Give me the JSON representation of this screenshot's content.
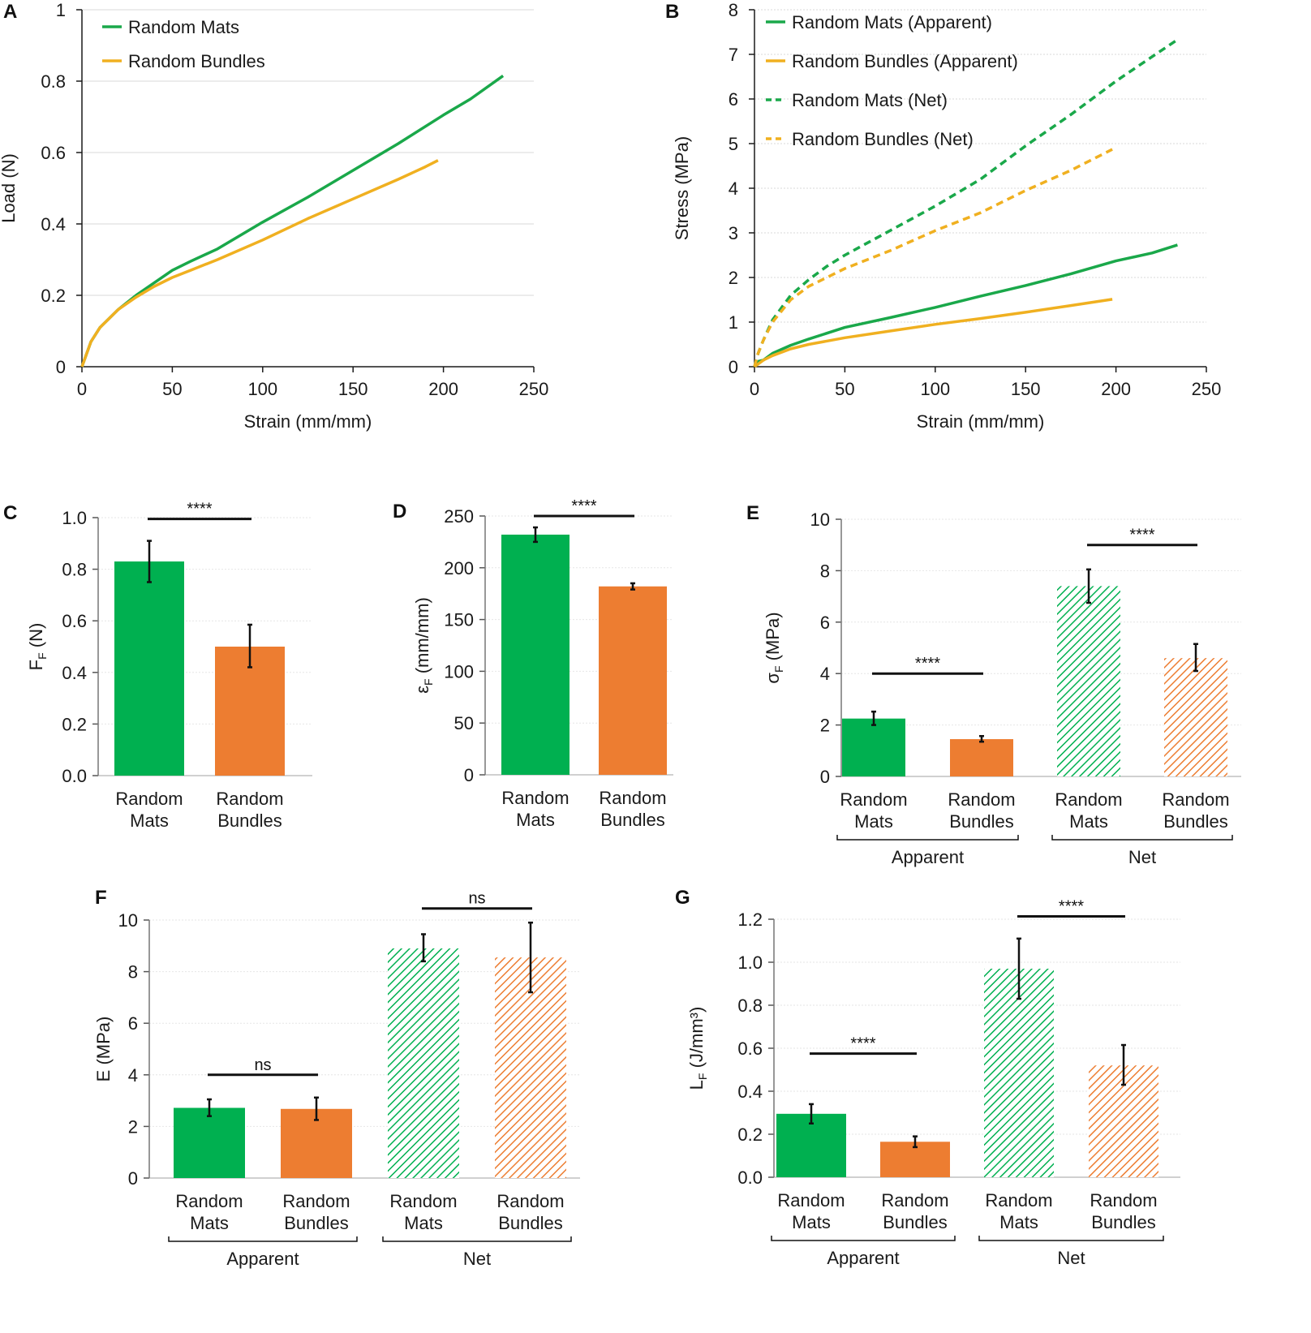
{
  "colors": {
    "green_line": "#1aa84a",
    "yellow_line": "#f0b020",
    "green_bar": "#00b050",
    "orange_bar": "#ed7d31",
    "axis": "#1a1a1a",
    "grid": "#d9d9d9"
  },
  "chart_data": [
    {
      "panel": "A",
      "type": "line",
      "xlabel": "Strain (mm/mm)",
      "ylabel": "Load (N)",
      "xlim": [
        0,
        250
      ],
      "ylim": [
        0,
        1
      ],
      "xticks": [
        "0",
        "50",
        "100",
        "150",
        "200",
        "250"
      ],
      "yticks": [
        "0",
        "0.2",
        "0.4",
        "0.6",
        "0.8",
        "1"
      ],
      "grid": true,
      "legend_position": "top-left",
      "series": [
        {
          "name": "Random Mats",
          "color": "green_line",
          "dash": false,
          "x": [
            0,
            5,
            10,
            20,
            30,
            40,
            50,
            60,
            75,
            100,
            125,
            150,
            175,
            200,
            215,
            233
          ],
          "y": [
            0,
            0.07,
            0.11,
            0.16,
            0.2,
            0.235,
            0.27,
            0.295,
            0.33,
            0.405,
            0.475,
            0.55,
            0.625,
            0.705,
            0.75,
            0.815
          ]
        },
        {
          "name": "Random Bundles",
          "color": "yellow_line",
          "dash": false,
          "x": [
            0,
            5,
            10,
            20,
            30,
            40,
            50,
            60,
            75,
            100,
            125,
            150,
            175,
            190,
            197
          ],
          "y": [
            0,
            0.07,
            0.11,
            0.16,
            0.195,
            0.225,
            0.25,
            0.27,
            0.3,
            0.355,
            0.415,
            0.47,
            0.525,
            0.56,
            0.578
          ]
        }
      ]
    },
    {
      "panel": "B",
      "type": "line",
      "xlabel": "Strain (mm/mm)",
      "ylabel": "Stress (MPa)",
      "xlim": [
        0,
        250
      ],
      "ylim": [
        0,
        8
      ],
      "xticks": [
        "0",
        "50",
        "100",
        "150",
        "200",
        "250"
      ],
      "yticks": [
        "0",
        "1",
        "2",
        "3",
        "4",
        "5",
        "6",
        "7",
        "8"
      ],
      "grid": true,
      "legend_position": "top-left",
      "series": [
        {
          "name": "Random Mats (Apparent)",
          "color": "green_line",
          "dash": false,
          "x": [
            0,
            2,
            5,
            10,
            20,
            30,
            50,
            75,
            100,
            125,
            150,
            175,
            200,
            220,
            234
          ],
          "y": [
            0,
            0.12,
            0.15,
            0.3,
            0.48,
            0.62,
            0.88,
            1.1,
            1.33,
            1.58,
            1.82,
            2.08,
            2.37,
            2.55,
            2.73
          ]
        },
        {
          "name": "Random Bundles (Apparent)",
          "color": "yellow_line",
          "dash": false,
          "x": [
            0,
            5,
            10,
            20,
            30,
            50,
            75,
            100,
            125,
            150,
            175,
            198
          ],
          "y": [
            0,
            0.15,
            0.25,
            0.4,
            0.5,
            0.65,
            0.8,
            0.95,
            1.08,
            1.22,
            1.37,
            1.51
          ]
        },
        {
          "name": "Random Mats (Net)",
          "color": "green_line",
          "dash": true,
          "x": [
            0,
            2,
            5,
            10,
            20,
            30,
            40,
            50,
            75,
            100,
            125,
            150,
            175,
            200,
            220,
            234
          ],
          "y": [
            0,
            0.3,
            0.6,
            1.05,
            1.6,
            1.95,
            2.25,
            2.5,
            3.05,
            3.6,
            4.2,
            4.95,
            5.65,
            6.4,
            6.95,
            7.33
          ]
        },
        {
          "name": "Random Bundles (Net)",
          "color": "yellow_line",
          "dash": true,
          "x": [
            0,
            2,
            5,
            10,
            20,
            30,
            40,
            50,
            75,
            100,
            125,
            150,
            175,
            198
          ],
          "y": [
            0,
            0.3,
            0.6,
            1.0,
            1.5,
            1.8,
            2.0,
            2.2,
            2.6,
            3.05,
            3.45,
            3.95,
            4.4,
            4.87
          ]
        }
      ]
    },
    {
      "panel": "C",
      "type": "bar",
      "ylabel_main": "F",
      "ylabel_sub": "F",
      "ylabel_unit": " (N)",
      "ylim": [
        0,
        1.0
      ],
      "yticks": [
        "0.0",
        "0.2",
        "0.4",
        "0.6",
        "0.8",
        "1.0"
      ],
      "grid": true,
      "categories": [
        [
          "Random",
          "Mats"
        ],
        [
          "Random",
          "Bundles"
        ]
      ],
      "values": [
        0.83,
        0.5
      ],
      "errors_low": [
        0.75,
        0.42
      ],
      "errors_high": [
        0.91,
        0.585
      ],
      "hatched": [
        false,
        false
      ],
      "bar_colors": [
        "green_bar",
        "orange_bar"
      ],
      "significance": [
        {
          "from": 0,
          "to": 1,
          "label": "****",
          "y": 0.995
        }
      ],
      "groups": []
    },
    {
      "panel": "D",
      "type": "bar",
      "ylabel_main": "ε",
      "ylabel_sub": "F",
      "ylabel_unit": " (mm/mm)",
      "ylim": [
        0,
        250
      ],
      "yticks": [
        "0",
        "50",
        "100",
        "150",
        "200",
        "250"
      ],
      "grid": true,
      "categories": [
        [
          "Random",
          "Mats"
        ],
        [
          "Random",
          "Bundles"
        ]
      ],
      "values": [
        232,
        182
      ],
      "errors_low": [
        225,
        179
      ],
      "errors_high": [
        239,
        185
      ],
      "hatched": [
        false,
        false
      ],
      "bar_colors": [
        "green_bar",
        "orange_bar"
      ],
      "significance": [
        {
          "from": 0,
          "to": 1,
          "label": "****",
          "y": 250
        }
      ],
      "groups": []
    },
    {
      "panel": "E",
      "type": "bar",
      "ylabel_main": "σ",
      "ylabel_sub": "F",
      "ylabel_unit": " (MPa)",
      "ylim": [
        0,
        10
      ],
      "yticks": [
        "0",
        "2",
        "4",
        "6",
        "8",
        "10"
      ],
      "grid": true,
      "categories": [
        [
          "Random",
          "Mats"
        ],
        [
          "Random",
          "Bundles"
        ],
        [
          "Random",
          "Mats"
        ],
        [
          "Random",
          "Bundles"
        ]
      ],
      "values": [
        2.25,
        1.45,
        7.4,
        4.6
      ],
      "errors_low": [
        2.0,
        1.35,
        6.75,
        4.1
      ],
      "errors_high": [
        2.52,
        1.57,
        8.05,
        5.15
      ],
      "hatched": [
        false,
        false,
        true,
        true
      ],
      "bar_colors": [
        "green_bar",
        "orange_bar",
        "green_bar",
        "orange_bar"
      ],
      "significance": [
        {
          "from": 0,
          "to": 1,
          "label": "****",
          "y": 4.0
        },
        {
          "from": 2,
          "to": 3,
          "label": "****",
          "y": 9.0
        }
      ],
      "groups": [
        {
          "label": "Apparent",
          "from": 0,
          "to": 1
        },
        {
          "label": "Net",
          "from": 2,
          "to": 3
        }
      ]
    },
    {
      "panel": "F",
      "type": "bar",
      "ylabel_main": "E",
      "ylabel_sub": "",
      "ylabel_unit": " (MPa)",
      "ylim": [
        0,
        10
      ],
      "yticks": [
        "0",
        "2",
        "4",
        "6",
        "8",
        "10"
      ],
      "grid": true,
      "categories": [
        [
          "Random",
          "Mats"
        ],
        [
          "Random",
          "Bundles"
        ],
        [
          "Random",
          "Mats"
        ],
        [
          "Random",
          "Bundles"
        ]
      ],
      "values": [
        2.72,
        2.68,
        8.9,
        8.55
      ],
      "errors_low": [
        2.4,
        2.25,
        8.4,
        7.2
      ],
      "errors_high": [
        3.05,
        3.12,
        9.45,
        9.9
      ],
      "hatched": [
        false,
        false,
        true,
        true
      ],
      "bar_colors": [
        "green_bar",
        "orange_bar",
        "green_bar",
        "orange_bar"
      ],
      "significance": [
        {
          "from": 0,
          "to": 1,
          "label": "ns",
          "y": 4.0
        },
        {
          "from": 2,
          "to": 3,
          "label": "ns",
          "y": 10.45
        }
      ],
      "groups": [
        {
          "label": "Apparent",
          "from": 0,
          "to": 1
        },
        {
          "label": "Net",
          "from": 2,
          "to": 3
        }
      ]
    },
    {
      "panel": "G",
      "type": "bar",
      "ylabel_main": "L",
      "ylabel_sub": "F",
      "ylabel_unit": " (J/mm³)",
      "ylim": [
        0,
        1.2
      ],
      "yticks": [
        "0.0",
        "0.2",
        "0.4",
        "0.6",
        "0.8",
        "1.0",
        "1.2"
      ],
      "grid": true,
      "categories": [
        [
          "Random",
          "Mats"
        ],
        [
          "Random",
          "Bundles"
        ],
        [
          "Random",
          "Mats"
        ],
        [
          "Random",
          "Bundles"
        ]
      ],
      "values": [
        0.295,
        0.165,
        0.97,
        0.52
      ],
      "errors_low": [
        0.25,
        0.14,
        0.83,
        0.43
      ],
      "errors_high": [
        0.34,
        0.19,
        1.11,
        0.615
      ],
      "hatched": [
        false,
        false,
        true,
        true
      ],
      "bar_colors": [
        "green_bar",
        "orange_bar",
        "green_bar",
        "orange_bar"
      ],
      "significance": [
        {
          "from": 0,
          "to": 1,
          "label": "****",
          "y": 0.575
        },
        {
          "from": 2,
          "to": 3,
          "label": "****",
          "y": 1.213
        }
      ],
      "groups": [
        {
          "label": "Apparent",
          "from": 0,
          "to": 1
        },
        {
          "label": "Net",
          "from": 2,
          "to": 3
        }
      ]
    }
  ]
}
